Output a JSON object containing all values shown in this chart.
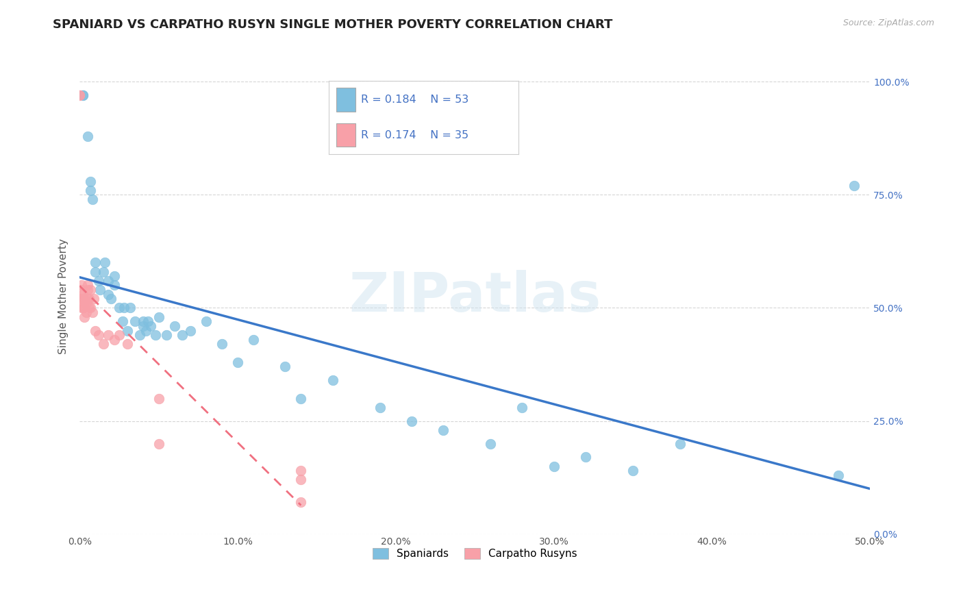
{
  "title": "SPANIARD VS CARPATHO RUSYN SINGLE MOTHER POVERTY CORRELATION CHART",
  "source": "Source: ZipAtlas.com",
  "ylabel": "Single Mother Poverty",
  "xlim": [
    0.0,
    0.5
  ],
  "ylim": [
    0.0,
    1.05
  ],
  "xticks": [
    0.0,
    0.1,
    0.2,
    0.3,
    0.4,
    0.5
  ],
  "xtick_labels": [
    "0.0%",
    "10.0%",
    "20.0%",
    "30.0%",
    "40.0%",
    "50.0%"
  ],
  "ytick_labels_right": [
    "0.0%",
    "25.0%",
    "50.0%",
    "75.0%",
    "100.0%"
  ],
  "yticks_right": [
    0.0,
    0.25,
    0.5,
    0.75,
    1.0
  ],
  "spaniard_color": "#7fbfdf",
  "carpatho_color": "#f8a0a8",
  "spaniard_R": 0.184,
  "spaniard_N": 53,
  "carpatho_R": 0.174,
  "carpatho_N": 35,
  "legend_R_color": "#4472c4",
  "watermark": "ZIPatlas",
  "spaniard_x": [
    0.002,
    0.002,
    0.005,
    0.007,
    0.007,
    0.008,
    0.01,
    0.01,
    0.012,
    0.013,
    0.015,
    0.016,
    0.018,
    0.018,
    0.02,
    0.022,
    0.022,
    0.025,
    0.027,
    0.028,
    0.03,
    0.032,
    0.035,
    0.038,
    0.04,
    0.04,
    0.042,
    0.043,
    0.045,
    0.048,
    0.05,
    0.055,
    0.06,
    0.065,
    0.07,
    0.08,
    0.09,
    0.1,
    0.11,
    0.13,
    0.14,
    0.16,
    0.19,
    0.21,
    0.23,
    0.26,
    0.28,
    0.3,
    0.32,
    0.35,
    0.38,
    0.48,
    0.49
  ],
  "spaniard_y": [
    0.97,
    0.97,
    0.88,
    0.78,
    0.76,
    0.74,
    0.58,
    0.6,
    0.56,
    0.54,
    0.58,
    0.6,
    0.53,
    0.56,
    0.52,
    0.55,
    0.57,
    0.5,
    0.47,
    0.5,
    0.45,
    0.5,
    0.47,
    0.44,
    0.46,
    0.47,
    0.45,
    0.47,
    0.46,
    0.44,
    0.48,
    0.44,
    0.46,
    0.44,
    0.45,
    0.47,
    0.42,
    0.38,
    0.43,
    0.37,
    0.3,
    0.34,
    0.28,
    0.25,
    0.23,
    0.2,
    0.28,
    0.15,
    0.17,
    0.14,
    0.2,
    0.13,
    0.77
  ],
  "carpatho_x": [
    0.0,
    0.0,
    0.001,
    0.001,
    0.001,
    0.001,
    0.002,
    0.002,
    0.002,
    0.003,
    0.003,
    0.003,
    0.004,
    0.004,
    0.005,
    0.005,
    0.005,
    0.006,
    0.006,
    0.007,
    0.007,
    0.008,
    0.009,
    0.01,
    0.012,
    0.015,
    0.018,
    0.022,
    0.025,
    0.03,
    0.05,
    0.05,
    0.14,
    0.14,
    0.14
  ],
  "carpatho_y": [
    0.97,
    0.97,
    0.5,
    0.52,
    0.54,
    0.55,
    0.5,
    0.52,
    0.53,
    0.48,
    0.5,
    0.52,
    0.49,
    0.51,
    0.52,
    0.54,
    0.55,
    0.5,
    0.52,
    0.5,
    0.54,
    0.49,
    0.52,
    0.45,
    0.44,
    0.42,
    0.44,
    0.43,
    0.44,
    0.42,
    0.3,
    0.2,
    0.07,
    0.12,
    0.14
  ],
  "bg_color": "#ffffff",
  "grid_color": "#cccccc",
  "title_fontsize": 13,
  "axis_label_fontsize": 11,
  "tick_fontsize": 10
}
